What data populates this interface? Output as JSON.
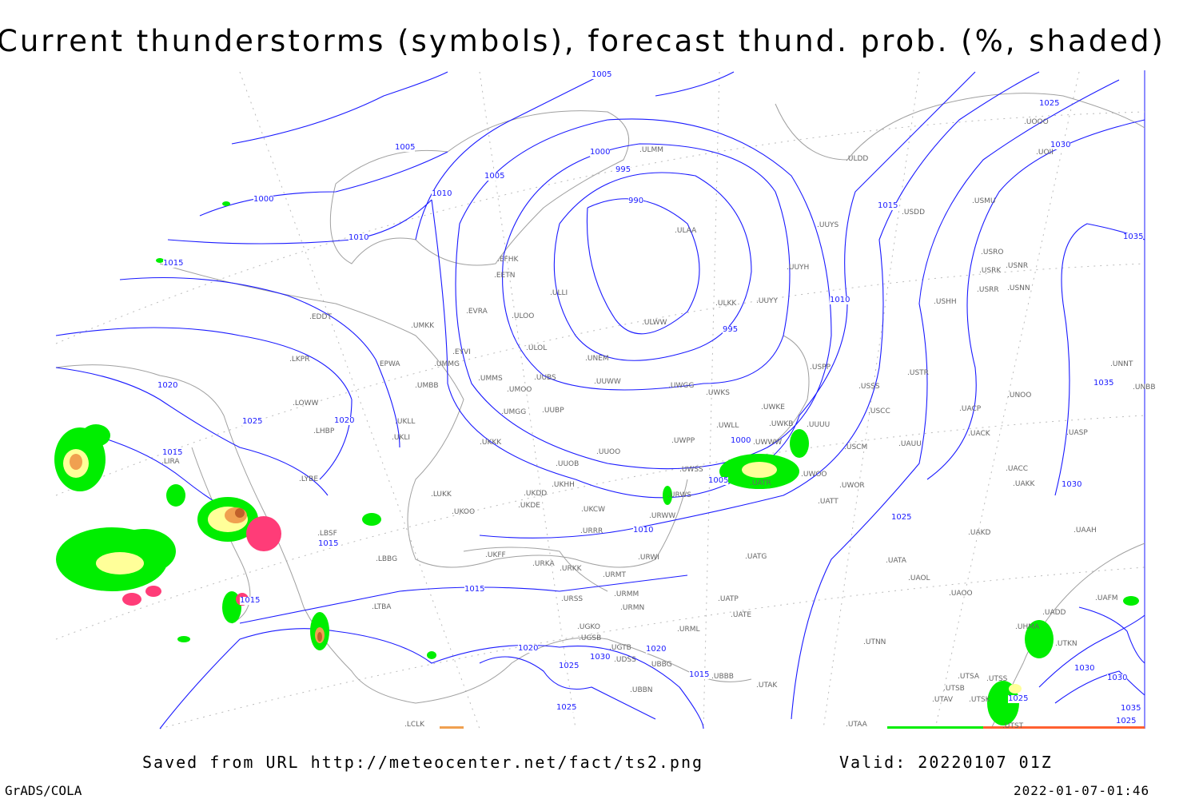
{
  "title": "Current thunderstorms (symbols), forecast thund. prob. (%, shaded)",
  "footer": {
    "source": "Saved from URL http://meteocenter.net/fact/ts2.png",
    "valid": "Valid: 20220107 01Z",
    "credit": "GrADS/COLA",
    "timestamp": "2022-01-07-01:46"
  },
  "colors": {
    "isobar": "#1a1aff",
    "coastline": "#a0a0a0",
    "prob_low": "#00ee00",
    "prob_mid": "#ffff99",
    "prob_high": "#f0a050",
    "prob_max": "#c0602a",
    "storm_symbol": "#ff3c78"
  },
  "isobar_labels": [
    "1005",
    "1025",
    "1000",
    "995",
    "1005",
    "1005",
    "1010",
    "1030",
    "990",
    "1000",
    "1010",
    "1015",
    "1035",
    "1015",
    "1010",
    "995",
    "1020",
    "1020",
    "1025",
    "1035",
    "1015",
    "1000",
    "1005",
    "1030",
    "1025",
    "1010",
    "1015",
    "1015",
    "1015",
    "1020",
    "1020",
    "1025",
    "1030",
    "1015",
    "1030",
    "1030",
    "1025",
    "1025",
    "1035",
    "1025"
  ],
  "stations": [
    "ULMM",
    "ULDD",
    "EFHK",
    "EETN",
    "ULLI",
    "EVRA",
    "ULOO",
    "UMKK",
    "EYVI",
    "ULOL",
    "EPWA",
    "UMMG",
    "UMMS",
    "UMOO",
    "UUBS",
    "UUWW",
    "UMBB",
    "UWGG",
    "UWKS",
    "UMGG",
    "UUBP",
    "UKLL",
    "UKLI",
    "UKKK",
    "UUOO",
    "UWPP",
    "UUOB",
    "LKPR",
    "LOWW",
    "LHBP",
    "EDDT",
    "LIRA",
    "LYBE",
    "LBSF",
    "LBBG",
    "LTBA",
    "LUKK",
    "UKOO",
    "UKHH",
    "UKDD",
    "UKDE",
    "UKCW",
    "UKFF",
    "URKA",
    "URKK",
    "URRR",
    "URWI",
    "URWW",
    "ULAA",
    "UUYH",
    "ULKK",
    "UUYY",
    "ULWW",
    "UNEM",
    "USPP",
    "UWKE",
    "UWKB",
    "UUUU",
    "UWLL",
    "UWWW",
    "UWSS",
    "UATR",
    "UWOO",
    "UWOR",
    "UATT",
    "URWS",
    "USSS",
    "USCC",
    "USCM",
    "UUYS",
    "USDD",
    "USMU",
    "USRO",
    "USRK",
    "USNR",
    "USRR",
    "USNN",
    "USHH",
    "USTR",
    "UACP",
    "UACK",
    "UAUU",
    "UASP",
    "UACC",
    "UAKK",
    "UAKD",
    "UAAH",
    "UATA",
    "UAOL",
    "UAOO",
    "UAFM",
    "UADD",
    "UTKN",
    "UATG",
    "UATE",
    "UATP",
    "URML",
    "URMT",
    "URMM",
    "URMN",
    "URSS",
    "UGKO",
    "UGSB",
    "UGTB",
    "UBBG",
    "UBBN",
    "UDSS",
    "UBBB",
    "UTAK",
    "UTNN",
    "UTSA",
    "UTSS",
    "UTSB",
    "UTAV",
    "UTSK",
    "UTST",
    "UTAA",
    "UNNT",
    "UNOO",
    "UNBB",
    "UOOO",
    "UOII",
    "LCLK",
    "UHMA"
  ]
}
